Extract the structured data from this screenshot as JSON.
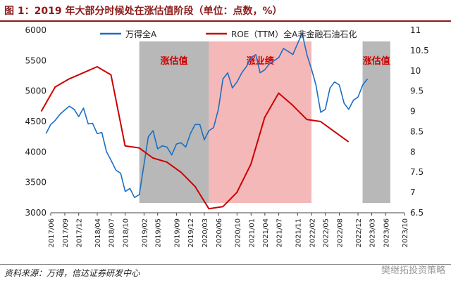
{
  "title": "图 1：2019 年大部分时候处在涨估值阶段（单位：点数，%）",
  "source": "资料来源：万得，信达证券研发中心",
  "brand": "樊继拓投资策略",
  "chart_data": {
    "type": "line",
    "x_ticks": [
      "2017/06",
      "2017/09",
      "2017/12",
      "2018/04",
      "2018/07",
      "2018/10",
      "2019/02",
      "2019/05",
      "2019/09",
      "2019/12",
      "2020/03",
      "2020/06",
      "2020/10",
      "2021/01",
      "2021/04",
      "2021/07",
      "2021/11",
      "2022/02",
      "2022/05",
      "2022/08",
      "2022/12",
      "2023/03",
      "2023/06",
      "2023/10"
    ],
    "y_left": {
      "min": 3000,
      "max": 6000,
      "ticks": [
        3000,
        3500,
        4000,
        4500,
        5000,
        5500,
        6000
      ]
    },
    "y_right": {
      "min": 6.5,
      "max": 11,
      "ticks": [
        "6.5",
        "7",
        "7.5",
        "8",
        "8.5",
        "9",
        "9.5",
        "10",
        "10.5",
        "11"
      ]
    },
    "bands": [
      {
        "label": "涨估值",
        "start": "2019-01-01",
        "end": "2020-03-31",
        "color": "#b8b8b8"
      },
      {
        "label": "涨业绩",
        "start": "2020-03-31",
        "end": "2022-01-31",
        "color": "#f5b8b8"
      },
      {
        "label": "涨估值",
        "start": "2022-12-31",
        "end": "2023-06-30",
        "color": "#b8b8b8"
      }
    ],
    "series": [
      {
        "name": "万得全A",
        "axis": "left",
        "color": "#1a6fc4",
        "points": [
          [
            "2017-05-01",
            4300
          ],
          [
            "2017-06-01",
            4450
          ],
          [
            "2017-07-01",
            4520
          ],
          [
            "2017-08-01",
            4620
          ],
          [
            "2017-09-01",
            4690
          ],
          [
            "2017-10-01",
            4750
          ],
          [
            "2017-11-01",
            4700
          ],
          [
            "2017-12-01",
            4580
          ],
          [
            "2018-01-01",
            4720
          ],
          [
            "2018-02-01",
            4460
          ],
          [
            "2018-03-01",
            4470
          ],
          [
            "2018-04-01",
            4300
          ],
          [
            "2018-05-01",
            4320
          ],
          [
            "2018-06-01",
            4000
          ],
          [
            "2018-07-01",
            3860
          ],
          [
            "2018-08-01",
            3700
          ],
          [
            "2018-09-01",
            3650
          ],
          [
            "2018-10-01",
            3350
          ],
          [
            "2018-11-01",
            3400
          ],
          [
            "2018-12-01",
            3250
          ],
          [
            "2019-01-01",
            3300
          ],
          [
            "2019-02-01",
            3800
          ],
          [
            "2019-03-01",
            4250
          ],
          [
            "2019-04-01",
            4350
          ],
          [
            "2019-05-01",
            4050
          ],
          [
            "2019-06-01",
            4100
          ],
          [
            "2019-07-01",
            4080
          ],
          [
            "2019-08-01",
            3950
          ],
          [
            "2019-09-01",
            4130
          ],
          [
            "2019-10-01",
            4150
          ],
          [
            "2019-11-01",
            4080
          ],
          [
            "2019-12-01",
            4300
          ],
          [
            "2020-01-01",
            4450
          ],
          [
            "2020-02-01",
            4450
          ],
          [
            "2020-03-01",
            4200
          ],
          [
            "2020-04-01",
            4350
          ],
          [
            "2020-05-01",
            4400
          ],
          [
            "2020-06-01",
            4700
          ],
          [
            "2020-07-01",
            5200
          ],
          [
            "2020-08-01",
            5300
          ],
          [
            "2020-09-01",
            5050
          ],
          [
            "2020-10-01",
            5150
          ],
          [
            "2020-11-01",
            5300
          ],
          [
            "2020-12-01",
            5400
          ],
          [
            "2021-01-01",
            5550
          ],
          [
            "2021-02-01",
            5600
          ],
          [
            "2021-03-01",
            5300
          ],
          [
            "2021-04-01",
            5350
          ],
          [
            "2021-05-01",
            5450
          ],
          [
            "2021-06-01",
            5500
          ],
          [
            "2021-07-01",
            5550
          ],
          [
            "2021-08-01",
            5700
          ],
          [
            "2021-09-01",
            5650
          ],
          [
            "2021-10-01",
            5600
          ],
          [
            "2021-11-01",
            5780
          ],
          [
            "2021-12-01",
            5950
          ],
          [
            "2022-01-01",
            5600
          ],
          [
            "2022-02-01",
            5350
          ],
          [
            "2022-03-01",
            5100
          ],
          [
            "2022-04-01",
            4650
          ],
          [
            "2022-05-01",
            4700
          ],
          [
            "2022-06-01",
            5050
          ],
          [
            "2022-07-01",
            5150
          ],
          [
            "2022-08-01",
            5100
          ],
          [
            "2022-09-01",
            4800
          ],
          [
            "2022-10-01",
            4700
          ],
          [
            "2022-11-01",
            4850
          ],
          [
            "2022-12-01",
            4900
          ],
          [
            "2023-01-01",
            5100
          ],
          [
            "2023-02-01",
            5200
          ]
        ]
      },
      {
        "name": "ROE（TTM）全A非金融石油石化",
        "axis": "right",
        "color": "#cc0000",
        "points": [
          [
            "2017-03-31",
            9.0
          ],
          [
            "2017-06-30",
            9.6
          ],
          [
            "2017-09-30",
            9.8
          ],
          [
            "2017-12-31",
            9.95
          ],
          [
            "2018-03-31",
            10.1
          ],
          [
            "2018-06-30",
            9.9
          ],
          [
            "2018-09-30",
            8.15
          ],
          [
            "2018-12-31",
            8.1
          ],
          [
            "2019-03-31",
            7.85
          ],
          [
            "2019-06-30",
            7.75
          ],
          [
            "2019-09-30",
            7.5
          ],
          [
            "2019-12-31",
            7.15
          ],
          [
            "2020-03-31",
            6.6
          ],
          [
            "2020-06-30",
            6.65
          ],
          [
            "2020-09-30",
            7.0
          ],
          [
            "2020-12-31",
            7.7
          ],
          [
            "2021-03-31",
            8.85
          ],
          [
            "2021-06-30",
            9.45
          ],
          [
            "2021-09-30",
            9.15
          ],
          [
            "2021-12-31",
            8.8
          ],
          [
            "2022-03-31",
            8.75
          ],
          [
            "2022-06-30",
            8.5
          ],
          [
            "2022-09-30",
            8.25
          ]
        ]
      }
    ]
  }
}
